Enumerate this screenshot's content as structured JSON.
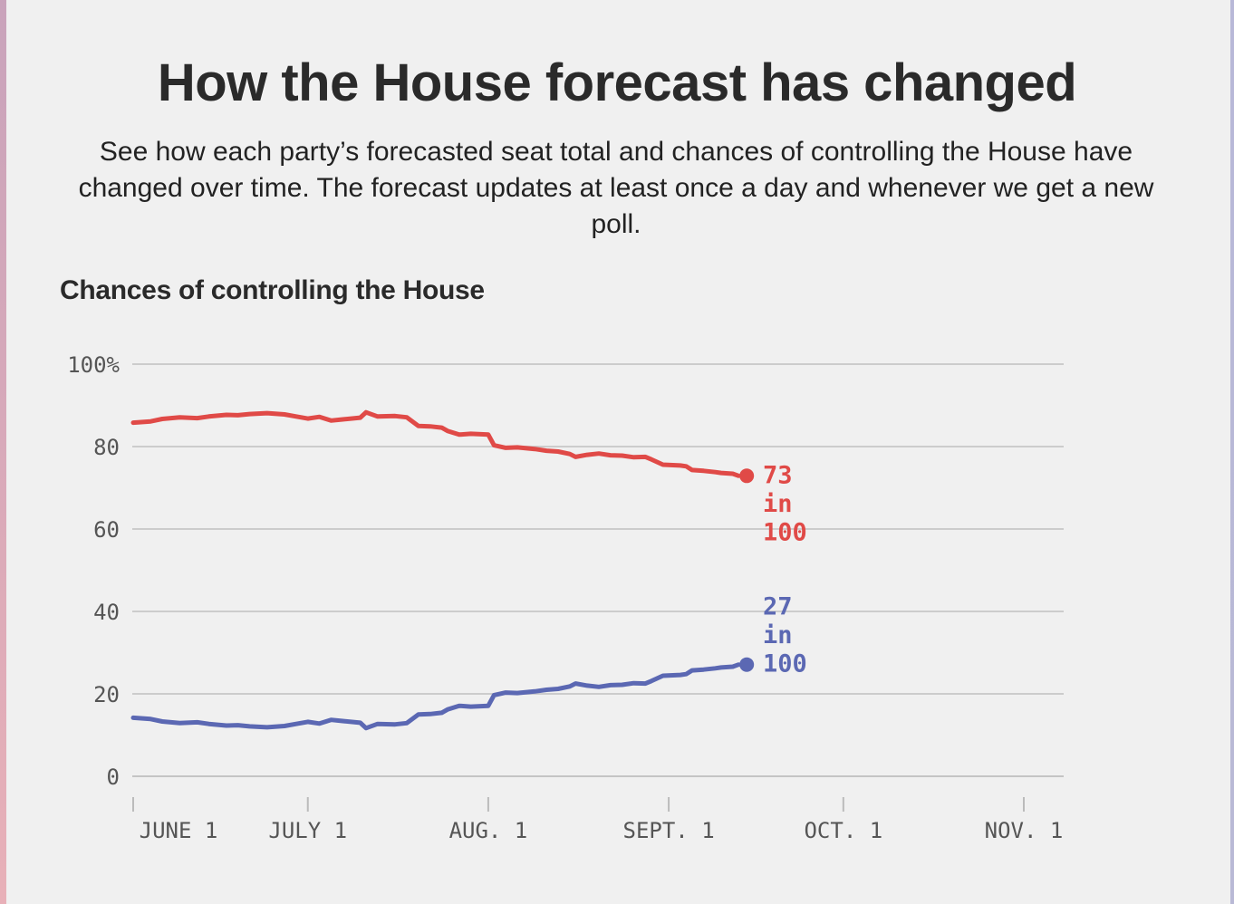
{
  "header": {
    "title": "How the House forecast has changed",
    "subtitle": "See how each party’s forecasted seat total and chances of controlling the House have changed over time. The forecast updates at least once a day and whenever we get a new poll."
  },
  "colors": {
    "republican": "#e04a47",
    "democrat": "#5b68b3",
    "grid": "#cccccc",
    "axis_text": "#555555"
  },
  "chart_data": {
    "type": "line",
    "title": "Chances of controlling the House",
    "xlabel": "",
    "ylabel": "",
    "x_axis": {
      "type": "date",
      "range": [
        "2018-06-01",
        "2018-11-06"
      ],
      "ticks": [
        {
          "date": "2018-06-01",
          "label": "JUNE 1"
        },
        {
          "date": "2018-07-01",
          "label": "JULY 1"
        },
        {
          "date": "2018-08-01",
          "label": "AUG. 1"
        },
        {
          "date": "2018-09-01",
          "label": "SEPT. 1"
        },
        {
          "date": "2018-10-01",
          "label": "OCT. 1"
        },
        {
          "date": "2018-11-01",
          "label": "NOV. 1"
        }
      ]
    },
    "y_axis": {
      "range": [
        0,
        100
      ],
      "ticks": [
        {
          "value": 0,
          "label": "0"
        },
        {
          "value": 20,
          "label": "20"
        },
        {
          "value": 40,
          "label": "40"
        },
        {
          "value": 60,
          "label": "60"
        },
        {
          "value": 80,
          "label": "80"
        },
        {
          "value": 100,
          "label": "100%"
        }
      ]
    },
    "grid": true,
    "series": [
      {
        "color": "#e04a47",
        "end_label": [
          "73",
          "in",
          "100"
        ],
        "points": [
          [
            "2018-06-01",
            85.8
          ],
          [
            "2018-06-04",
            86.1
          ],
          [
            "2018-06-06",
            86.7
          ],
          [
            "2018-06-09",
            87.1
          ],
          [
            "2018-06-12",
            86.9
          ],
          [
            "2018-06-14",
            87.3
          ],
          [
            "2018-06-17",
            87.7
          ],
          [
            "2018-06-19",
            87.6
          ],
          [
            "2018-06-21",
            87.9
          ],
          [
            "2018-06-24",
            88.1
          ],
          [
            "2018-06-27",
            87.8
          ],
          [
            "2018-06-29",
            87.3
          ],
          [
            "2018-07-01",
            86.8
          ],
          [
            "2018-07-03",
            87.2
          ],
          [
            "2018-07-05",
            86.3
          ],
          [
            "2018-07-07",
            86.6
          ],
          [
            "2018-07-10",
            87.0
          ],
          [
            "2018-07-11",
            88.3
          ],
          [
            "2018-07-13",
            87.3
          ],
          [
            "2018-07-16",
            87.4
          ],
          [
            "2018-07-18",
            87.1
          ],
          [
            "2018-07-20",
            85.0
          ],
          [
            "2018-07-22",
            84.9
          ],
          [
            "2018-07-24",
            84.6
          ],
          [
            "2018-07-25",
            83.8
          ],
          [
            "2018-07-27",
            82.9
          ],
          [
            "2018-07-29",
            83.1
          ],
          [
            "2018-08-01",
            82.9
          ],
          [
            "2018-08-02",
            80.3
          ],
          [
            "2018-08-04",
            79.7
          ],
          [
            "2018-08-06",
            79.8
          ],
          [
            "2018-08-09",
            79.4
          ],
          [
            "2018-08-11",
            79.0
          ],
          [
            "2018-08-13",
            78.8
          ],
          [
            "2018-08-15",
            78.2
          ],
          [
            "2018-08-16",
            77.5
          ],
          [
            "2018-08-18",
            78.0
          ],
          [
            "2018-08-20",
            78.3
          ],
          [
            "2018-08-22",
            77.9
          ],
          [
            "2018-08-24",
            77.8
          ],
          [
            "2018-08-26",
            77.4
          ],
          [
            "2018-08-28",
            77.5
          ],
          [
            "2018-08-29",
            76.9
          ],
          [
            "2018-08-31",
            75.6
          ],
          [
            "2018-09-03",
            75.4
          ],
          [
            "2018-09-04",
            75.2
          ],
          [
            "2018-09-05",
            74.3
          ],
          [
            "2018-09-07",
            74.1
          ],
          [
            "2018-09-09",
            73.8
          ],
          [
            "2018-09-10",
            73.6
          ],
          [
            "2018-09-12",
            73.4
          ],
          [
            "2018-09-13",
            72.9
          ]
        ]
      },
      {
        "color": "#5b68b3",
        "end_label": [
          "27",
          "in",
          "100"
        ],
        "points": [
          [
            "2018-06-01",
            14.2
          ],
          [
            "2018-06-04",
            13.9
          ],
          [
            "2018-06-06",
            13.3
          ],
          [
            "2018-06-09",
            12.9
          ],
          [
            "2018-06-12",
            13.1
          ],
          [
            "2018-06-14",
            12.7
          ],
          [
            "2018-06-17",
            12.3
          ],
          [
            "2018-06-19",
            12.4
          ],
          [
            "2018-06-21",
            12.1
          ],
          [
            "2018-06-24",
            11.9
          ],
          [
            "2018-06-27",
            12.2
          ],
          [
            "2018-06-29",
            12.7
          ],
          [
            "2018-07-01",
            13.2
          ],
          [
            "2018-07-03",
            12.8
          ],
          [
            "2018-07-05",
            13.7
          ],
          [
            "2018-07-07",
            13.4
          ],
          [
            "2018-07-10",
            13.0
          ],
          [
            "2018-07-11",
            11.7
          ],
          [
            "2018-07-13",
            12.7
          ],
          [
            "2018-07-16",
            12.6
          ],
          [
            "2018-07-18",
            12.9
          ],
          [
            "2018-07-20",
            15.0
          ],
          [
            "2018-07-22",
            15.1
          ],
          [
            "2018-07-24",
            15.4
          ],
          [
            "2018-07-25",
            16.2
          ],
          [
            "2018-07-27",
            17.1
          ],
          [
            "2018-07-29",
            16.9
          ],
          [
            "2018-08-01",
            17.1
          ],
          [
            "2018-08-02",
            19.7
          ],
          [
            "2018-08-04",
            20.3
          ],
          [
            "2018-08-06",
            20.2
          ],
          [
            "2018-08-09",
            20.6
          ],
          [
            "2018-08-11",
            21.0
          ],
          [
            "2018-08-13",
            21.2
          ],
          [
            "2018-08-15",
            21.8
          ],
          [
            "2018-08-16",
            22.5
          ],
          [
            "2018-08-18",
            22.0
          ],
          [
            "2018-08-20",
            21.7
          ],
          [
            "2018-08-22",
            22.1
          ],
          [
            "2018-08-24",
            22.2
          ],
          [
            "2018-08-26",
            22.6
          ],
          [
            "2018-08-28",
            22.5
          ],
          [
            "2018-08-29",
            23.1
          ],
          [
            "2018-08-31",
            24.4
          ],
          [
            "2018-09-03",
            24.6
          ],
          [
            "2018-09-04",
            24.8
          ],
          [
            "2018-09-05",
            25.7
          ],
          [
            "2018-09-07",
            25.9
          ],
          [
            "2018-09-09",
            26.2
          ],
          [
            "2018-09-10",
            26.4
          ],
          [
            "2018-09-12",
            26.6
          ],
          [
            "2018-09-13",
            27.1
          ]
        ]
      }
    ]
  }
}
